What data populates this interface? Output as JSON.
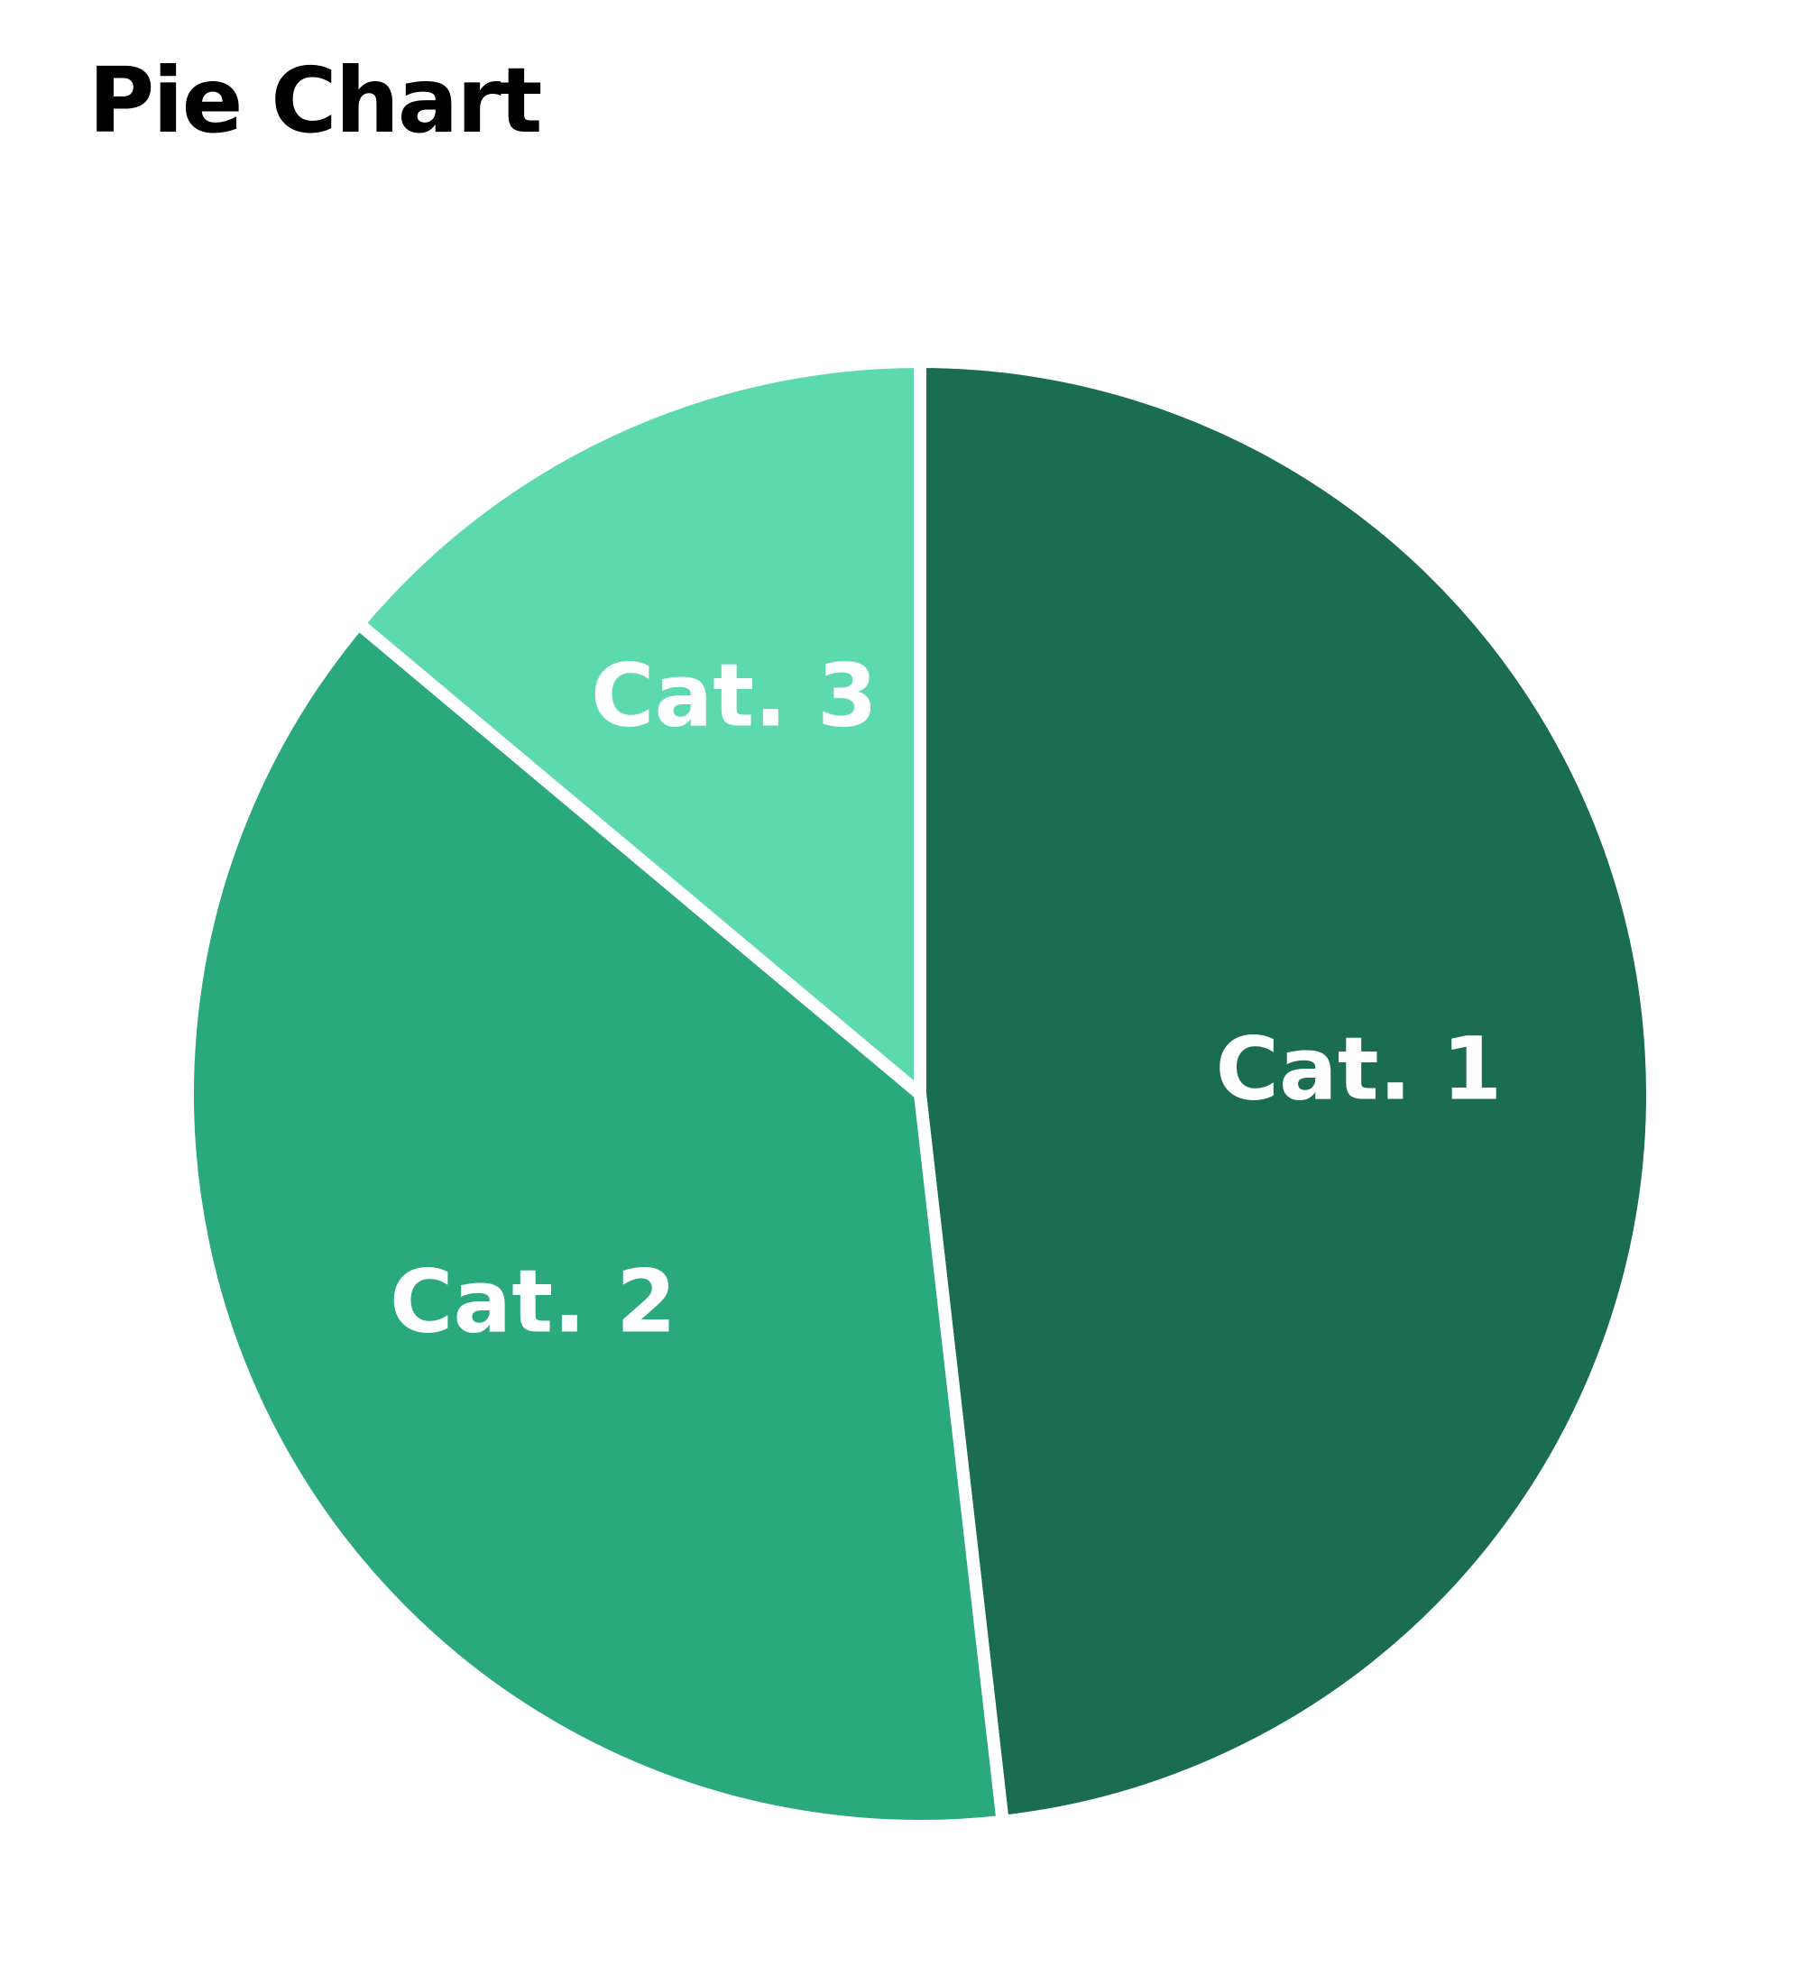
{
  "chart_data": {
    "type": "pie",
    "title": "Pie Chart",
    "categories": [
      "Cat. 1",
      "Cat. 2",
      "Cat. 3"
    ],
    "values": [
      48.2,
      37.9,
      13.9
    ],
    "colors": [
      "#1b6d51",
      "#2aa97d",
      "#5dd9ae"
    ],
    "start": "top",
    "direction": "clockwise",
    "legend": "none",
    "data_labels": "inside"
  }
}
